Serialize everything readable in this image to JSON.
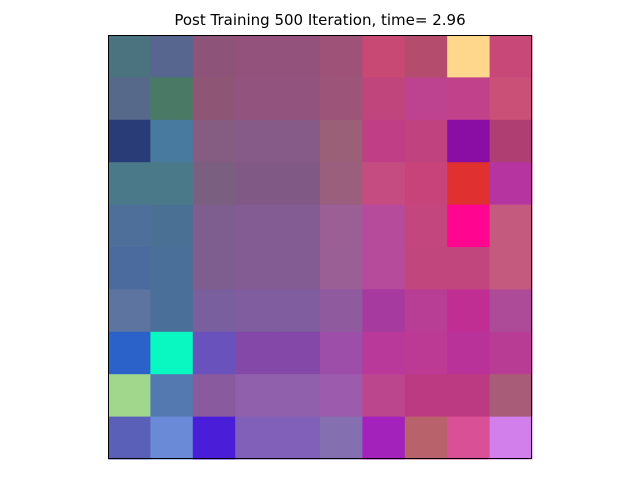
{
  "chart_data": {
    "type": "heatmap",
    "title": "Post Training 500 Iteration, time= 2.96",
    "rows": 10,
    "cols": 10,
    "axes_ticks": false,
    "cells": [
      [
        "#4a737f",
        "#56668e",
        "#8e5378",
        "#92527b",
        "#92527b",
        "#9e5278",
        "#c84974",
        "#b44c6d",
        "#fed68c",
        "#c84878"
      ],
      [
        "#56698b",
        "#4a7a65",
        "#8e5674",
        "#92537e",
        "#92537e",
        "#9c5578",
        "#c1457d",
        "#bd4290",
        "#c1428a",
        "#cb5078"
      ],
      [
        "#2a3c78",
        "#477a9e",
        "#855c82",
        "#875b88",
        "#875b88",
        "#996078",
        "#c03e85",
        "#c0427e",
        "#8a0ea4",
        "#af3f73"
      ],
      [
        "#4a7a8a",
        "#4a7a8a",
        "#7a5f81",
        "#805a85",
        "#805a85",
        "#9a5f7d",
        "#c44c80",
        "#c8437a",
        "#e03030",
        "#b5349f"
      ],
      [
        "#4e6f9a",
        "#4a7194",
        "#7e5e8e",
        "#825c93",
        "#825c93",
        "#9b5e95",
        "#b64b9b",
        "#c3467e",
        "#ff0590",
        "#c45a7d"
      ],
      [
        "#4b6b9e",
        "#4a6f98",
        "#7e5e8e",
        "#825c93",
        "#825c93",
        "#9a5f95",
        "#b64b9b",
        "#c2467e",
        "#c2467e",
        "#c45a7d"
      ],
      [
        "#5d74a0",
        "#4a6f98",
        "#7a5f9e",
        "#7f5d9e",
        "#7f5d9e",
        "#8f5a9e",
        "#a63a9f",
        "#b83d94",
        "#c02e94",
        "#ad4b99"
      ],
      [
        "#2b62ca",
        "#09f7c0",
        "#6a52bd",
        "#8448a8",
        "#8448a8",
        "#9c4ea8",
        "#b8399a",
        "#bc3a94",
        "#b8329a",
        "#b83c94"
      ],
      [
        "#a1d68d",
        "#5478b0",
        "#8a5a9e",
        "#9060ac",
        "#9060ac",
        "#9c5bac",
        "#bc468e",
        "#bb3a82",
        "#bb3a82",
        "#a95c78"
      ],
      [
        "#5a60b8",
        "#6a8ad8",
        "#4a1ed8",
        "#8060b8",
        "#8060b8",
        "#8470b0",
        "#a422bc",
        "#b8626c",
        "#da5096",
        "#d27eeb"
      ]
    ]
  }
}
